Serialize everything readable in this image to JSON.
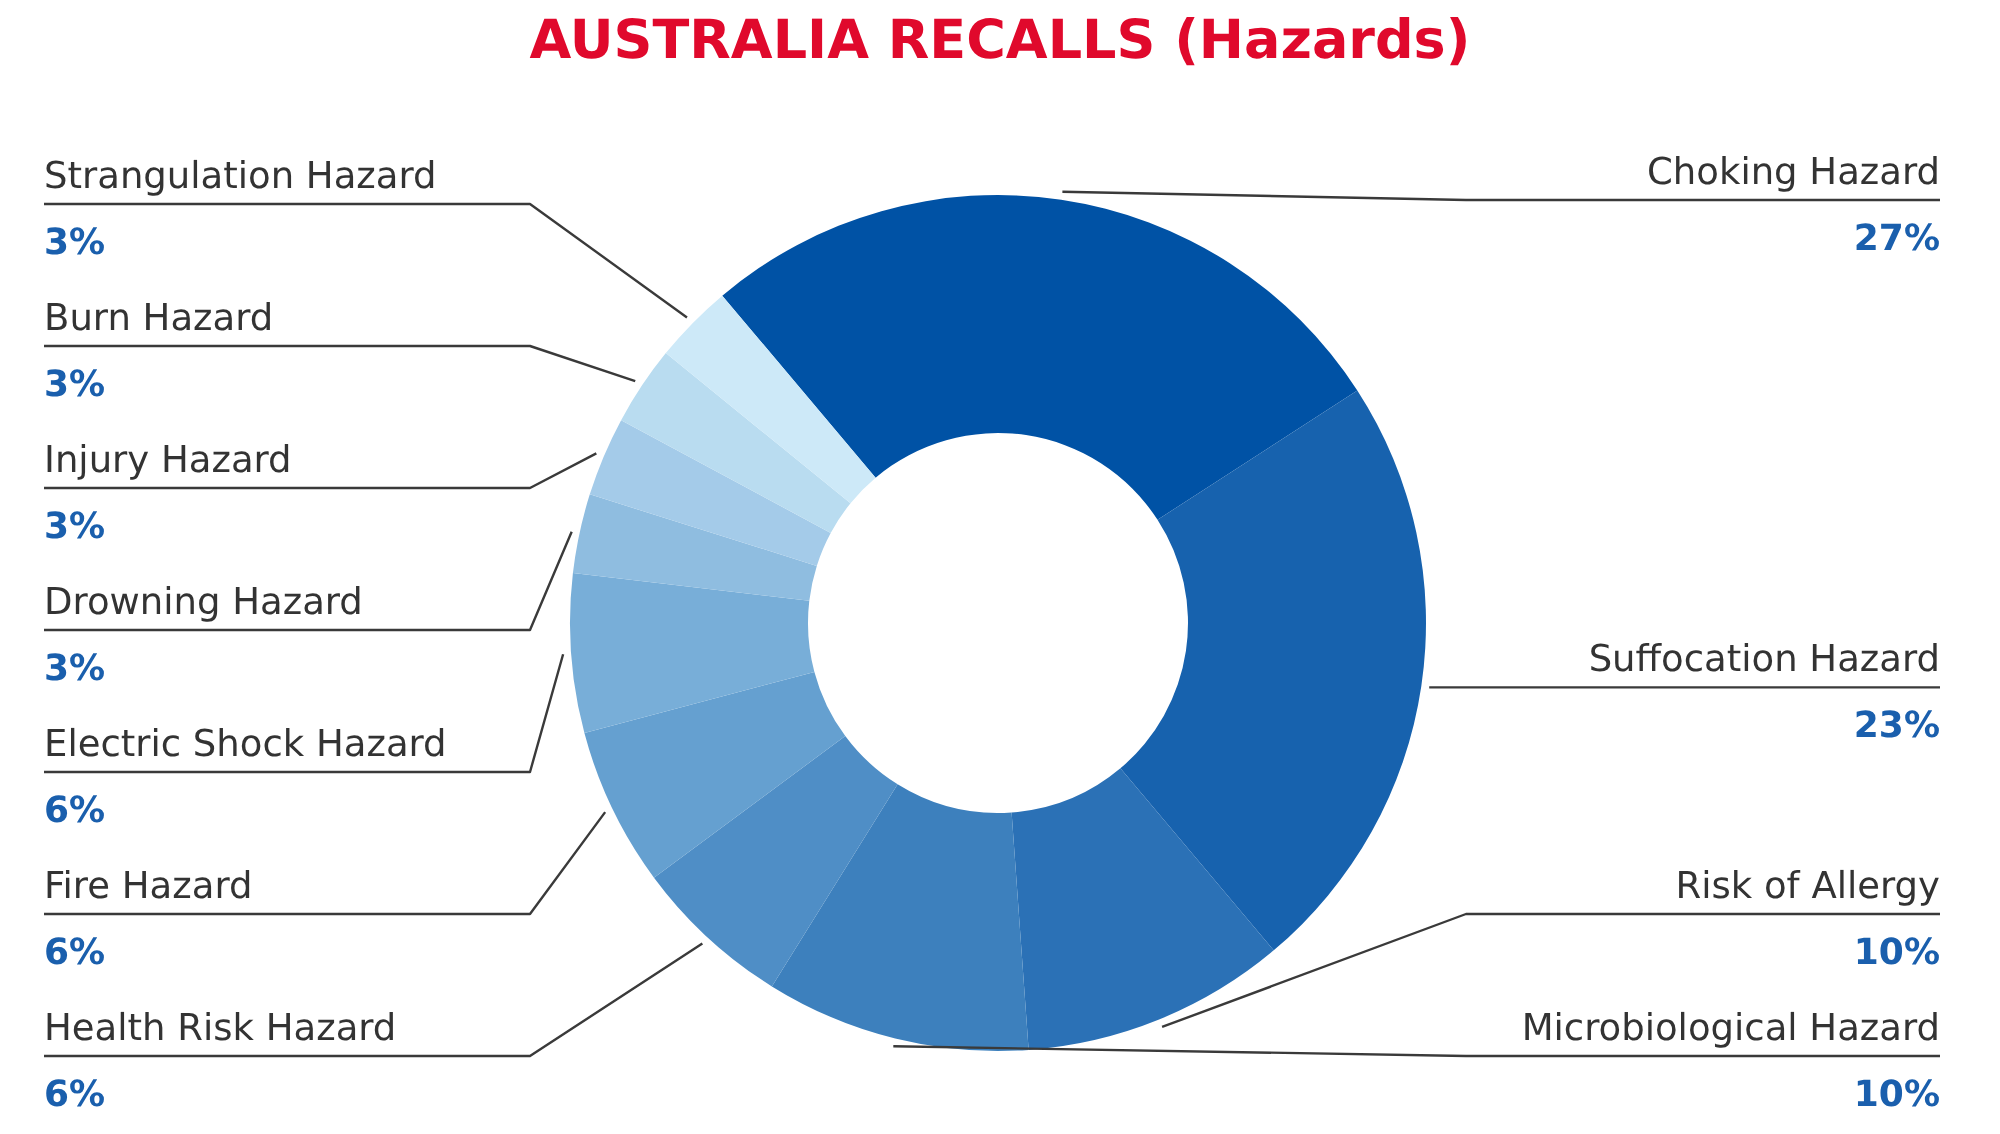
{
  "chart_data": {
    "type": "donut",
    "title": "AUSTRALIA RECALLS (Hazards)",
    "categories": [
      "Choking Hazard",
      "Suffocation Hazard",
      "Risk of Allergy",
      "Microbiological Hazard",
      "Health Risk Hazard",
      "Fire Hazard",
      "Electric Shock Hazard",
      "Drowning Hazard",
      "Injury Hazard",
      "Burn Hazard",
      "Strangulation Hazard"
    ],
    "values": [
      27,
      23,
      10,
      10,
      6,
      6,
      6,
      3,
      3,
      3,
      3
    ],
    "value_labels": [
      "27%",
      "23%",
      "10%",
      "10%",
      "6%",
      "6%",
      "6%",
      "3%",
      "3%",
      "3%",
      "3%"
    ],
    "colors": [
      "#0052a5",
      "#1762ae",
      "#2b71b6",
      "#3d80bd",
      "#4f8ec6",
      "#65a0d0",
      "#78aed8",
      "#8fbde0",
      "#a4cbe9",
      "#b9dcf0",
      "#cde9f8"
    ]
  }
}
